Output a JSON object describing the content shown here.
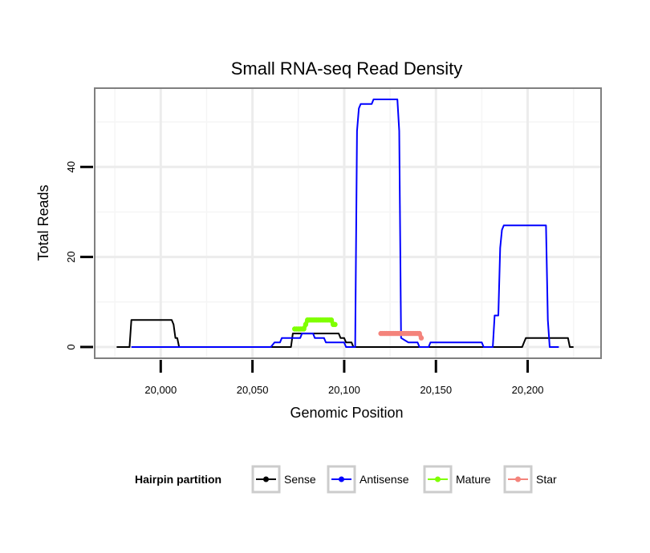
{
  "chart_data": {
    "type": "line",
    "title": "Small RNA-seq Read Density",
    "xlabel": "Genomic Position",
    "ylabel": "Total Reads",
    "xlim": [
      19964,
      20240
    ],
    "ylim": [
      -2.5,
      57.5
    ],
    "x_ticks": [
      20000,
      20050,
      20100,
      20150,
      20200
    ],
    "x_tick_labels": [
      "20,000",
      "20,050",
      "20,100",
      "20,150",
      "20,200"
    ],
    "x_minor_ticks": [
      19975,
      20025,
      20075,
      20125,
      20175,
      20225
    ],
    "y_ticks": [
      0,
      20,
      40
    ],
    "y_tick_labels": [
      "0",
      "20",
      "40"
    ],
    "y_minor_ticks": [
      10,
      30,
      50
    ],
    "grid": true,
    "legend_position": "bottom",
    "legend_title": "Hairpin partition",
    "series": [
      {
        "name": "Sense",
        "color": "#000000",
        "type": "line",
        "x": [
          19976,
          19983,
          19984,
          20006,
          20007,
          20008,
          20009,
          20010,
          20011,
          20071,
          20072,
          20092,
          20093,
          20097,
          20098,
          20099,
          20100,
          20101,
          20102,
          20103,
          20104,
          20105,
          20106,
          20107,
          20120,
          20121,
          20143,
          20144,
          20145,
          20146,
          20197,
          20198,
          20199,
          20200,
          20210,
          20211,
          20222,
          20223,
          20225
        ],
        "y": [
          0,
          0,
          6,
          6,
          5,
          2,
          2,
          0,
          0,
          0,
          3,
          3,
          3,
          3,
          2,
          2,
          2,
          1,
          1,
          1,
          1,
          0,
          0,
          0,
          0,
          0,
          0,
          0,
          0,
          0,
          0,
          1,
          2,
          2,
          2,
          2,
          2,
          0,
          0
        ]
      },
      {
        "name": "Antisense",
        "color": "#0000ff",
        "type": "line",
        "x": [
          19984,
          20060,
          20062,
          20063,
          20065,
          20066,
          20076,
          20077,
          20083,
          20084,
          20089,
          20090,
          20098,
          20099,
          20100,
          20101,
          20102,
          20106,
          20107,
          20108,
          20109,
          20110,
          20115,
          20116,
          20128,
          20129,
          20130,
          20131,
          20135,
          20136,
          20140,
          20141,
          20142,
          20143,
          20144,
          20145,
          20146,
          20147,
          20175,
          20176,
          20181,
          20182,
          20184,
          20185,
          20186,
          20187,
          20209,
          20210,
          20211,
          20212,
          20217
        ],
        "y": [
          0,
          0,
          1,
          1,
          1,
          2,
          2,
          3,
          3,
          2,
          2,
          1,
          1,
          1,
          1,
          0,
          0,
          0,
          48,
          53,
          54,
          54,
          54,
          55,
          55,
          55,
          48,
          2,
          1,
          1,
          1,
          0,
          0,
          0,
          0,
          0,
          0,
          1,
          1,
          0,
          0,
          7,
          7,
          22,
          26,
          27,
          27,
          27,
          6,
          0,
          0
        ]
      },
      {
        "name": "Mature",
        "color": "#7fff00",
        "type": "line_points",
        "x": [
          20073,
          20074,
          20075,
          20076,
          20077,
          20078,
          20079,
          20080,
          20081,
          20082,
          20083,
          20084,
          20085,
          20086,
          20087,
          20088,
          20089,
          20090,
          20091,
          20092,
          20093,
          20094,
          20095
        ],
        "y": [
          4,
          4,
          4,
          4,
          4,
          4,
          5,
          6,
          6,
          6,
          6,
          6,
          6,
          6,
          6,
          6,
          6,
          6,
          6,
          6,
          6,
          5,
          5
        ]
      },
      {
        "name": "Star",
        "color": "#f4837b",
        "type": "line_points",
        "x": [
          20120,
          20121,
          20122,
          20123,
          20124,
          20125,
          20126,
          20127,
          20128,
          20129,
          20130,
          20131,
          20132,
          20133,
          20134,
          20135,
          20136,
          20137,
          20138,
          20139,
          20140,
          20141,
          20142
        ],
        "y": [
          3,
          3,
          3,
          3,
          3,
          3,
          3,
          3,
          3,
          3,
          3,
          3,
          3,
          3,
          3,
          3,
          3,
          3,
          3,
          3,
          3,
          3,
          2
        ]
      }
    ]
  }
}
